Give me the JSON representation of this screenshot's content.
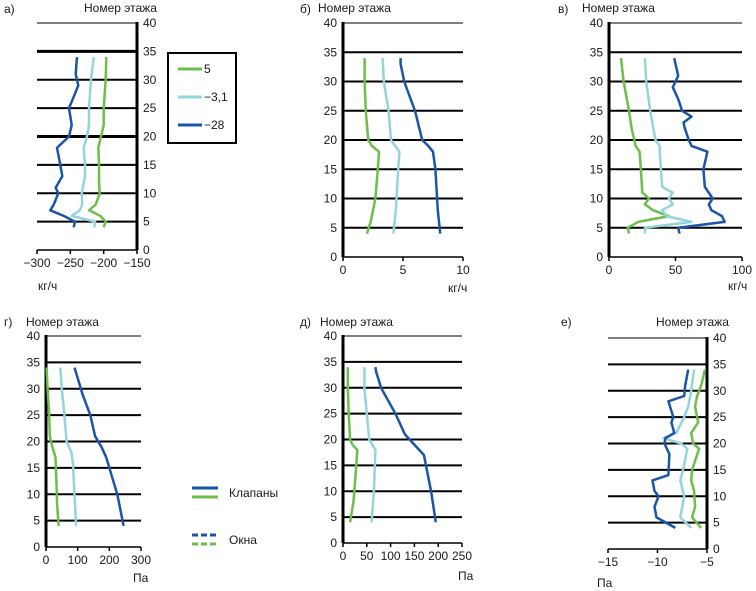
{
  "colors": {
    "5": "#6cbf4a",
    "-3,1": "#92d5da",
    "-28": "#1a56a8"
  },
  "legend_top": {
    "entries": [
      {
        "label": "5",
        "color": "#6cbf4a"
      },
      {
        "label": "−3,1",
        "color": "#92d5da"
      },
      {
        "label": "−28",
        "color": "#1a56a8"
      }
    ]
  },
  "legend_bottom": {
    "entries": [
      {
        "label": "Клапаны",
        "style": "solid"
      },
      {
        "label": "Окна",
        "style": "dashed"
      }
    ]
  },
  "chart_data": [
    {
      "id": "a",
      "panel_label": "а)",
      "type": "line",
      "ylabel": "Номер этажа",
      "xlabel": "кг/ч",
      "xlim": [
        -300,
        -150
      ],
      "xticks": [
        -300,
        -250,
        -200,
        -150
      ],
      "xtick_labels": [
        "−300",
        "−250",
        "−200",
        "−150"
      ],
      "ylim": [
        0,
        40
      ],
      "yticks": [
        0,
        5,
        10,
        15,
        20,
        25,
        30,
        35,
        40
      ],
      "yaxis": "right",
      "series": [
        {
          "name": "5",
          "points": [
            [
              -200,
              4
            ],
            [
              -197,
              5
            ],
            [
              -205,
              6
            ],
            [
              -222,
              7
            ],
            [
              -212,
              8
            ],
            [
              -206,
              10
            ],
            [
              -207,
              12
            ],
            [
              -207,
              15
            ],
            [
              -208,
              18
            ],
            [
              -204,
              20
            ],
            [
              -200,
              22
            ],
            [
              -200,
              25
            ],
            [
              -197,
              30
            ],
            [
              -196,
              34
            ]
          ]
        },
        {
          "name": "-3,1",
          "points": [
            [
              -214,
              4
            ],
            [
              -213,
              5
            ],
            [
              -248,
              6
            ],
            [
              -236,
              7
            ],
            [
              -232,
              8
            ],
            [
              -233,
              10
            ],
            [
              -228,
              13
            ],
            [
              -228,
              15
            ],
            [
              -230,
              18
            ],
            [
              -225,
              20
            ],
            [
              -222,
              22
            ],
            [
              -222,
              25
            ],
            [
              -219,
              30
            ],
            [
              -215,
              34
            ]
          ]
        },
        {
          "name": "-28",
          "points": [
            [
              -245,
              4
            ],
            [
              -243,
              5
            ],
            [
              -260,
              6
            ],
            [
              -280,
              7
            ],
            [
              -275,
              8
            ],
            [
              -268,
              10
            ],
            [
              -272,
              11
            ],
            [
              -262,
              13
            ],
            [
              -265,
              15
            ],
            [
              -270,
              18
            ],
            [
              -252,
              20
            ],
            [
              -248,
              22
            ],
            [
              -252,
              25
            ],
            [
              -245,
              27
            ],
            [
              -238,
              29
            ],
            [
              -242,
              31
            ],
            [
              -240,
              34
            ]
          ]
        }
      ]
    },
    {
      "id": "b",
      "panel_label": "б)",
      "type": "line",
      "ylabel": "Номер этажа",
      "xlabel": "кг/ч",
      "xlim": [
        0,
        10
      ],
      "xticks": [
        0,
        5,
        10
      ],
      "xtick_labels": [
        "0",
        "5",
        "10"
      ],
      "ylim": [
        0,
        40
      ],
      "yticks": [
        0,
        5,
        10,
        15,
        20,
        25,
        30,
        35,
        40
      ],
      "yaxis": "left",
      "series": [
        {
          "name": "5",
          "points": [
            [
              2.0,
              4
            ],
            [
              2.3,
              6
            ],
            [
              2.5,
              8
            ],
            [
              2.7,
              10
            ],
            [
              2.9,
              15
            ],
            [
              3.0,
              18
            ],
            [
              2.4,
              19
            ],
            [
              2.1,
              20
            ],
            [
              1.9,
              25
            ],
            [
              1.8,
              30
            ],
            [
              1.8,
              34
            ]
          ]
        },
        {
          "name": "-3,1",
          "points": [
            [
              4.2,
              4
            ],
            [
              4.4,
              8
            ],
            [
              4.6,
              15
            ],
            [
              4.7,
              18
            ],
            [
              4.0,
              20
            ],
            [
              3.8,
              25
            ],
            [
              3.4,
              30
            ],
            [
              3.3,
              34
            ]
          ]
        },
        {
          "name": "-28",
          "points": [
            [
              8.1,
              4
            ],
            [
              7.9,
              8
            ],
            [
              7.7,
              15
            ],
            [
              7.5,
              18
            ],
            [
              7.1,
              19
            ],
            [
              6.6,
              20
            ],
            [
              6.0,
              25
            ],
            [
              5.1,
              30
            ],
            [
              4.8,
              33
            ],
            [
              4.8,
              34
            ]
          ]
        }
      ]
    },
    {
      "id": "v",
      "panel_label": "в)",
      "type": "line",
      "ylabel": "Номер этажа",
      "xlabel": "кг/ч",
      "xlim": [
        0,
        100
      ],
      "xticks": [
        0,
        50,
        100
      ],
      "xtick_labels": [
        "0",
        "50",
        "100"
      ],
      "ylim": [
        0,
        40
      ],
      "yticks": [
        0,
        5,
        10,
        15,
        20,
        25,
        30,
        35,
        40
      ],
      "yaxis": "left",
      "series": [
        {
          "name": "5",
          "points": [
            [
              15,
              4
            ],
            [
              14,
              5
            ],
            [
              22,
              6
            ],
            [
              45,
              7
            ],
            [
              33,
              8
            ],
            [
              27,
              9
            ],
            [
              30,
              10
            ],
            [
              25,
              11
            ],
            [
              24,
              15
            ],
            [
              23,
              18
            ],
            [
              20,
              19
            ],
            [
              17,
              22
            ],
            [
              15,
              25
            ],
            [
              11,
              30
            ],
            [
              9,
              34
            ]
          ]
        },
        {
          "name": "-3,1",
          "points": [
            [
              27,
              4
            ],
            [
              27,
              5
            ],
            [
              62,
              6
            ],
            [
              43,
              7
            ],
            [
              40,
              8
            ],
            [
              48,
              9
            ],
            [
              45,
              10
            ],
            [
              48,
              11
            ],
            [
              40,
              12
            ],
            [
              39,
              15
            ],
            [
              38,
              19
            ],
            [
              35,
              20
            ],
            [
              31,
              25
            ],
            [
              28,
              30
            ],
            [
              27,
              34
            ]
          ]
        },
        {
          "name": "-28",
          "points": [
            [
              53,
              4
            ],
            [
              52,
              5
            ],
            [
              87,
              6
            ],
            [
              85,
              7
            ],
            [
              77,
              8
            ],
            [
              75,
              9
            ],
            [
              78,
              10
            ],
            [
              72,
              12
            ],
            [
              71,
              15
            ],
            [
              74,
              18
            ],
            [
              62,
              19
            ],
            [
              60,
              20
            ],
            [
              57,
              22
            ],
            [
              56,
              23
            ],
            [
              62,
              24
            ],
            [
              55,
              25
            ],
            [
              52,
              27
            ],
            [
              48,
              29
            ],
            [
              52,
              31
            ],
            [
              50,
              33
            ],
            [
              49,
              34
            ]
          ]
        }
      ]
    },
    {
      "id": "g",
      "panel_label": "г)",
      "type": "line",
      "ylabel": "Номер этажа",
      "xlabel": "Па",
      "xlim": [
        0,
        300
      ],
      "xticks": [
        0,
        100,
        200,
        300
      ],
      "xtick_labels": [
        "0",
        "100",
        "200",
        "300"
      ],
      "ylim": [
        0,
        40
      ],
      "yticks": [
        0,
        5,
        10,
        15,
        20,
        25,
        30,
        35,
        40
      ],
      "yaxis": "left",
      "series": [
        {
          "name": "5",
          "points": [
            [
              40,
              4
            ],
            [
              35,
              8
            ],
            [
              33,
              12
            ],
            [
              30,
              17
            ],
            [
              20,
              19
            ],
            [
              12,
              21
            ],
            [
              10,
              25
            ],
            [
              5,
              30
            ],
            [
              2,
              34
            ]
          ]
        },
        {
          "name": "-3,1",
          "points": [
            [
              95,
              4
            ],
            [
              90,
              10
            ],
            [
              85,
              16
            ],
            [
              80,
              18
            ],
            [
              65,
              20
            ],
            [
              58,
              25
            ],
            [
              50,
              30
            ],
            [
              45,
              34
            ]
          ]
        },
        {
          "name": "-28",
          "points": [
            [
              245,
              4
            ],
            [
              225,
              10
            ],
            [
              190,
              17
            ],
            [
              175,
              19
            ],
            [
              155,
              21
            ],
            [
              140,
              25
            ],
            [
              115,
              29
            ],
            [
              105,
              31
            ],
            [
              90,
              34
            ]
          ]
        }
      ]
    },
    {
      "id": "d",
      "panel_label": "д)",
      "type": "line",
      "ylabel": "Номер этажа",
      "xlabel": "Па",
      "xlim": [
        0,
        250
      ],
      "xticks": [
        0,
        50,
        100,
        150,
        200,
        250
      ],
      "xtick_labels": [
        "0",
        "50",
        "100",
        "150",
        "200",
        "250"
      ],
      "ylim": [
        0,
        40
      ],
      "yticks": [
        0,
        5,
        10,
        15,
        20,
        25,
        30,
        35,
        40
      ],
      "yaxis": "left",
      "series": [
        {
          "name": "5",
          "points": [
            [
              15,
              4
            ],
            [
              22,
              8
            ],
            [
              28,
              15
            ],
            [
              30,
              18
            ],
            [
              20,
              19
            ],
            [
              15,
              20
            ],
            [
              12,
              25
            ],
            [
              10,
              30
            ],
            [
              10,
              34
            ]
          ]
        },
        {
          "name": "-3,1",
          "points": [
            [
              60,
              4
            ],
            [
              65,
              10
            ],
            [
              68,
              18
            ],
            [
              55,
              20
            ],
            [
              50,
              25
            ],
            [
              45,
              30
            ],
            [
              45,
              34
            ]
          ]
        },
        {
          "name": "-28",
          "points": [
            [
              195,
              4
            ],
            [
              185,
              10
            ],
            [
              170,
              17
            ],
            [
              140,
              20
            ],
            [
              130,
              21
            ],
            [
              110,
              25
            ],
            [
              80,
              30
            ],
            [
              70,
              33
            ],
            [
              68,
              34
            ]
          ]
        }
      ]
    },
    {
      "id": "e",
      "panel_label": "е)",
      "type": "line",
      "ylabel": "Номер этажа",
      "xlabel": "Па",
      "xlim": [
        -15,
        -5
      ],
      "xticks": [
        -15,
        -10,
        -5
      ],
      "xtick_labels": [
        "−15",
        "−10",
        "−5"
      ],
      "ylim": [
        0,
        40
      ],
      "yticks": [
        0,
        5,
        10,
        15,
        20,
        25,
        30,
        35,
        40
      ],
      "yaxis": "right",
      "series": [
        {
          "name": "5",
          "points": [
            [
              -5.6,
              4
            ],
            [
              -6.5,
              6
            ],
            [
              -6.2,
              8
            ],
            [
              -6.3,
              11
            ],
            [
              -6.6,
              13
            ],
            [
              -6.5,
              15
            ],
            [
              -5.8,
              19
            ],
            [
              -6.4,
              20
            ],
            [
              -6.6,
              22
            ],
            [
              -5.9,
              24
            ],
            [
              -6.2,
              27
            ],
            [
              -6.0,
              29
            ],
            [
              -5.6,
              31
            ],
            [
              -5.2,
              34
            ]
          ]
        },
        {
          "name": "-3,1",
          "points": [
            [
              -6.6,
              4
            ],
            [
              -7.7,
              6
            ],
            [
              -7.5,
              8
            ],
            [
              -7.3,
              10
            ],
            [
              -7.7,
              13
            ],
            [
              -7.3,
              16
            ],
            [
              -7.0,
              19
            ],
            [
              -7.6,
              20
            ],
            [
              -9.4,
              21
            ],
            [
              -8.1,
              22
            ],
            [
              -7.3,
              25
            ],
            [
              -6.9,
              27
            ],
            [
              -6.6,
              30
            ],
            [
              -6.3,
              34
            ]
          ]
        },
        {
          "name": "-28",
          "points": [
            [
              -8.2,
              4
            ],
            [
              -10.1,
              6
            ],
            [
              -10.3,
              8
            ],
            [
              -9.9,
              10
            ],
            [
              -10.3,
              11
            ],
            [
              -10.5,
              13
            ],
            [
              -8.9,
              14
            ],
            [
              -8.8,
              18
            ],
            [
              -9.3,
              20
            ],
            [
              -9.2,
              21
            ],
            [
              -8.3,
              22
            ],
            [
              -8.6,
              24
            ],
            [
              -8.4,
              25
            ],
            [
              -8.9,
              28
            ],
            [
              -7.3,
              29
            ],
            [
              -7.2,
              31
            ],
            [
              -6.9,
              34
            ]
          ]
        }
      ]
    }
  ]
}
